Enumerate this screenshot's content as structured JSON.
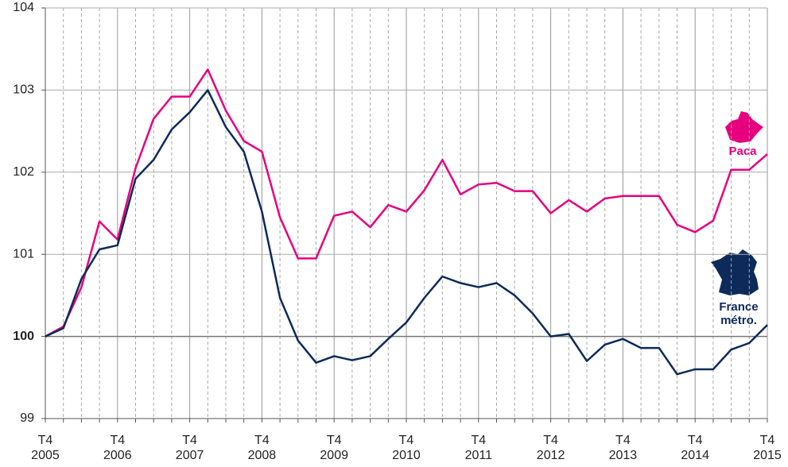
{
  "chart_data": {
    "type": "line",
    "categories": [
      "T4 2005",
      null,
      null,
      null,
      "T4 2006",
      null,
      null,
      null,
      "T4 2007",
      null,
      null,
      null,
      "T4 2008",
      null,
      null,
      null,
      "T4 2009",
      null,
      null,
      null,
      "T4 2010",
      null,
      null,
      null,
      "T4 2011",
      null,
      null,
      null,
      "T4 2012",
      null,
      null,
      null,
      "T4 2013",
      null,
      null,
      null,
      "T4 2014",
      null,
      null,
      null,
      "T4 2015"
    ],
    "series": [
      {
        "name": "Paca",
        "color": "#e6007e",
        "values": [
          100.0,
          100.12,
          100.6,
          101.4,
          101.18,
          102.05,
          102.65,
          102.92,
          102.92,
          103.25,
          102.75,
          102.38,
          102.25,
          101.45,
          100.95,
          100.95,
          101.47,
          101.52,
          101.33,
          101.6,
          101.52,
          101.78,
          102.15,
          101.73,
          101.85,
          101.87,
          101.77,
          101.77,
          101.5,
          101.66,
          101.52,
          101.68,
          101.71,
          101.71,
          101.71,
          101.36,
          101.27,
          101.41,
          102.03,
          102.03,
          102.22
        ]
      },
      {
        "name": "France métro.",
        "color": "#0d2a5a",
        "values": [
          100.0,
          100.1,
          100.7,
          101.06,
          101.11,
          101.92,
          102.15,
          102.52,
          102.73,
          103.0,
          102.55,
          102.25,
          101.52,
          100.47,
          99.95,
          99.68,
          99.76,
          99.71,
          99.76,
          99.97,
          100.17,
          100.47,
          100.73,
          100.65,
          100.6,
          100.65,
          100.5,
          100.28,
          100.0,
          100.03,
          99.7,
          99.9,
          99.97,
          99.86,
          99.86,
          99.54,
          99.6,
          99.6,
          99.84,
          99.92,
          100.14
        ]
      }
    ],
    "ylim": [
      99,
      104
    ],
    "yticks": [
      99,
      100,
      101,
      102,
      103,
      104
    ],
    "base": 100,
    "grid": true
  }
}
